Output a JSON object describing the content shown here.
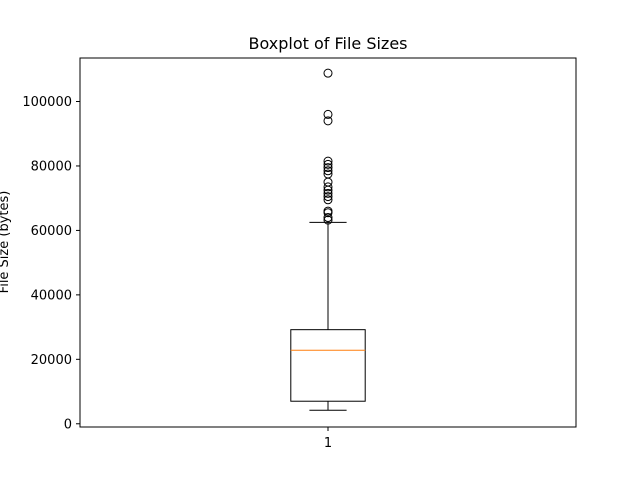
{
  "chart_data": {
    "type": "boxplot",
    "title": "Boxplot of File Sizes",
    "xlabel": "",
    "ylabel": "File Size (bytes)",
    "ylim": [
      -1000,
      113500
    ],
    "xlim": [
      0.5,
      1.5
    ],
    "yticks": [
      0,
      20000,
      40000,
      60000,
      80000,
      100000
    ],
    "yticklabels": [
      "0",
      "20000",
      "40000",
      "60000",
      "80000",
      "100000"
    ],
    "xticks": [
      1
    ],
    "xticklabels": [
      "1"
    ],
    "grid": false,
    "legend": "none",
    "boxes": [
      {
        "position": 1,
        "whisker_low": 4200,
        "q1": 7000,
        "median": 22800,
        "q3": 29200,
        "whisker_high": 62500,
        "outliers": [
          63200,
          64000,
          65500,
          66000,
          69500,
          70500,
          71500,
          72500,
          73500,
          75000,
          77500,
          78500,
          79500,
          80500,
          81500,
          94000,
          96000,
          108800
        ]
      }
    ],
    "colors": {
      "box": "#000000",
      "median": "#ff7f0e",
      "outlier": "#000000"
    }
  }
}
